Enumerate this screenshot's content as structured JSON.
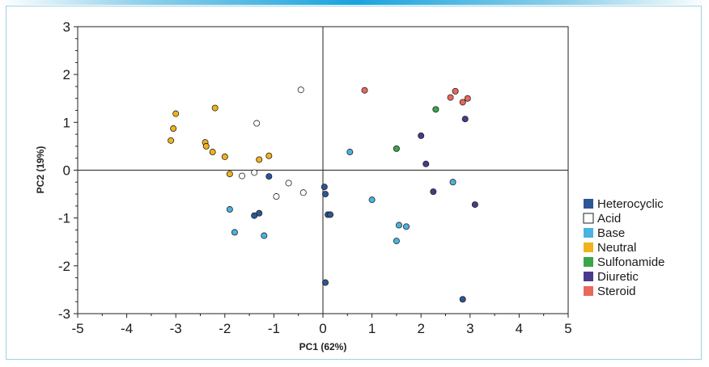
{
  "chart_data": {
    "type": "scatter",
    "title": "",
    "xlabel": "PC1 (62%)",
    "ylabel": "PC2 (19%)",
    "xlim": [
      -5,
      5
    ],
    "ylim": [
      -3,
      3
    ],
    "xticks": [
      -5,
      -4,
      -3,
      -2,
      -1,
      0,
      1,
      2,
      3,
      4,
      5
    ],
    "yticks": [
      3,
      2,
      1,
      0,
      -1,
      -2,
      -3
    ],
    "legend_position": "right",
    "series": [
      {
        "name": "Heterocyclic",
        "color": "#2b5797",
        "filled": true,
        "points": [
          [
            -1.1,
            -0.13
          ],
          [
            -1.3,
            -0.9
          ],
          [
            -1.4,
            -0.95
          ],
          [
            0.03,
            -0.35
          ],
          [
            0.05,
            -0.5
          ],
          [
            0.1,
            -0.93
          ],
          [
            0.15,
            -0.93
          ],
          [
            0.05,
            -2.35
          ],
          [
            2.85,
            -2.7
          ]
        ]
      },
      {
        "name": "Acid",
        "color": "#ffffff",
        "filled": false,
        "points": [
          [
            -0.45,
            1.68
          ],
          [
            -1.35,
            0.98
          ],
          [
            -1.65,
            -0.12
          ],
          [
            -1.4,
            -0.05
          ],
          [
            -0.7,
            -0.27
          ],
          [
            -0.95,
            -0.55
          ],
          [
            -0.4,
            -0.47
          ]
        ]
      },
      {
        "name": "Base",
        "color": "#4ab3df",
        "filled": true,
        "points": [
          [
            -1.9,
            -0.82
          ],
          [
            -1.8,
            -1.3
          ],
          [
            -1.2,
            -1.37
          ],
          [
            0.55,
            0.38
          ],
          [
            1.0,
            -0.62
          ],
          [
            1.55,
            -1.15
          ],
          [
            1.7,
            -1.18
          ],
          [
            1.5,
            -1.48
          ],
          [
            2.65,
            -0.25
          ]
        ]
      },
      {
        "name": "Neutral",
        "color": "#f0b31c",
        "filled": true,
        "points": [
          [
            -3.0,
            1.18
          ],
          [
            -3.05,
            0.87
          ],
          [
            -3.1,
            0.62
          ],
          [
            -2.2,
            1.3
          ],
          [
            -2.4,
            0.58
          ],
          [
            -2.38,
            0.5
          ],
          [
            -2.25,
            0.38
          ],
          [
            -2.0,
            0.28
          ],
          [
            -1.9,
            -0.08
          ],
          [
            -1.3,
            0.22
          ],
          [
            -1.1,
            0.3
          ]
        ]
      },
      {
        "name": "Sulfonamide",
        "color": "#3aa64a",
        "filled": true,
        "points": [
          [
            2.3,
            1.27
          ],
          [
            1.5,
            0.45
          ]
        ]
      },
      {
        "name": "Diuretic",
        "color": "#4a3a8c",
        "filled": true,
        "points": [
          [
            2.9,
            1.07
          ],
          [
            2.0,
            0.72
          ],
          [
            2.1,
            0.13
          ],
          [
            2.25,
            -0.45
          ],
          [
            3.1,
            -0.72
          ]
        ]
      },
      {
        "name": "Steroid",
        "color": "#e8685c",
        "filled": true,
        "points": [
          [
            0.85,
            1.67
          ],
          [
            2.6,
            1.52
          ],
          [
            2.7,
            1.65
          ],
          [
            2.85,
            1.42
          ],
          [
            2.95,
            1.5
          ]
        ]
      }
    ]
  }
}
